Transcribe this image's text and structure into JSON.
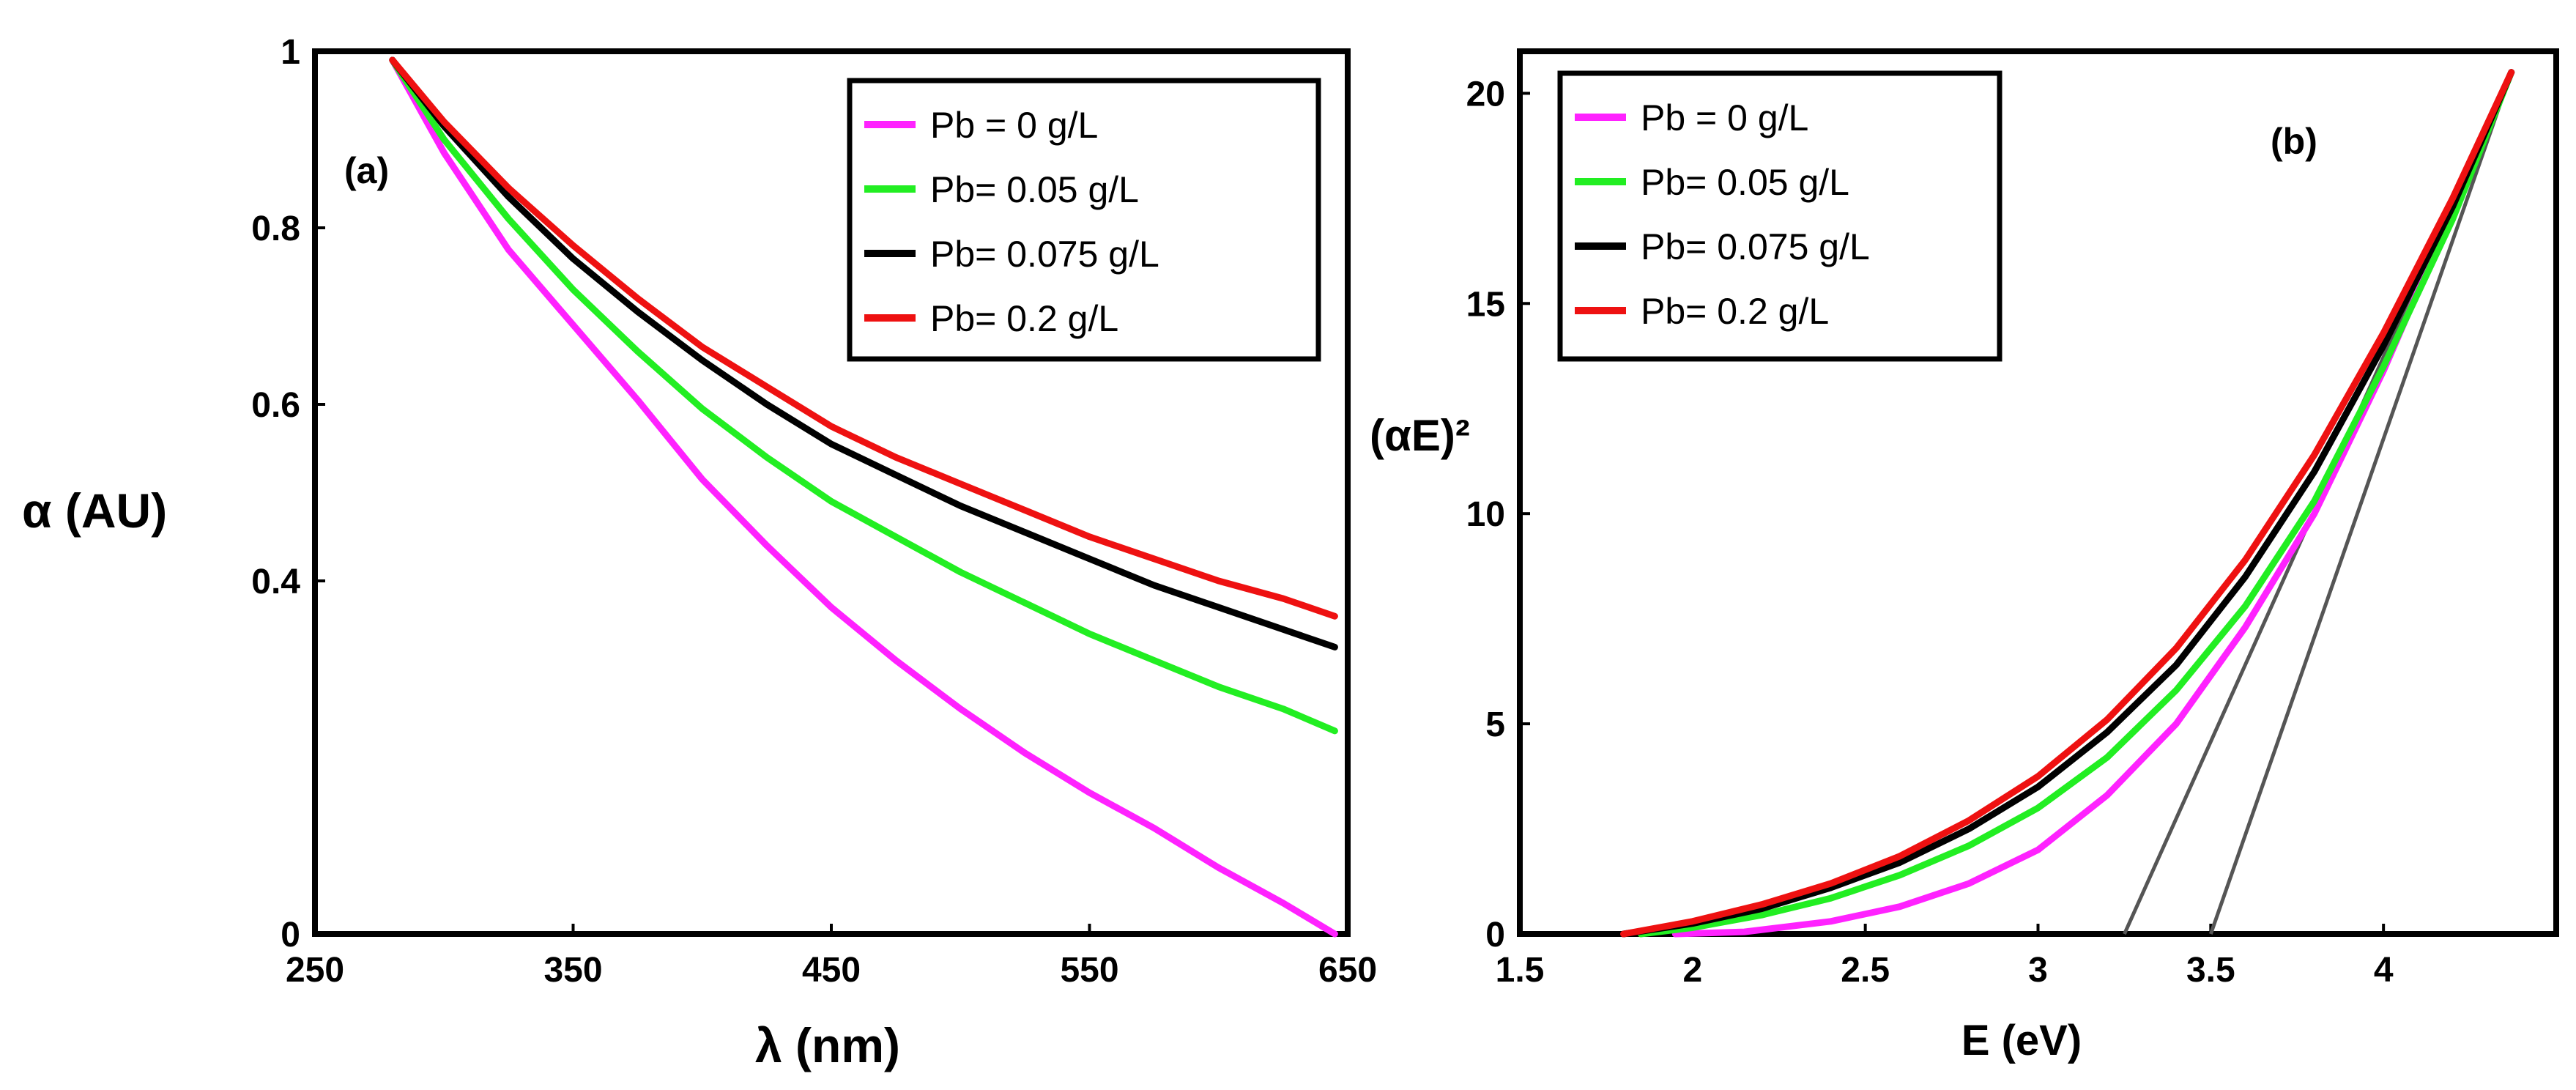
{
  "chart_data": [
    {
      "type": "line",
      "panel_label": "(a)",
      "xlabel": "λ (nm)",
      "ylabel": "α (AU)",
      "xlim": [
        250,
        650
      ],
      "ylim": [
        0,
        1
      ],
      "xticks": [
        250,
        350,
        450,
        550,
        650
      ],
      "yticks": [
        0,
        0.4,
        0.6,
        0.8,
        1
      ],
      "ytick_labels": [
        "0",
        "0.4",
        "0.6",
        "0.8",
        "1"
      ],
      "grid": false,
      "legend_position": "top-right",
      "series": [
        {
          "name": "Pb =  0 g/L",
          "color": "#ff22ff",
          "x": [
            280,
            300,
            325,
            350,
            375,
            400,
            425,
            450,
            475,
            500,
            525,
            550,
            575,
            600,
            625,
            645
          ],
          "y": [
            0.99,
            0.885,
            0.775,
            0.69,
            0.605,
            0.515,
            0.44,
            0.37,
            0.31,
            0.255,
            0.205,
            0.16,
            0.12,
            0.075,
            0.035,
            0.0
          ]
        },
        {
          "name": "Pb= 0.05 g/L",
          "color": "#22ee22",
          "x": [
            280,
            300,
            325,
            350,
            375,
            400,
            425,
            450,
            475,
            500,
            525,
            550,
            575,
            600,
            625,
            645
          ],
          "y": [
            0.99,
            0.9,
            0.81,
            0.73,
            0.66,
            0.595,
            0.54,
            0.49,
            0.45,
            0.41,
            0.375,
            0.34,
            0.31,
            0.28,
            0.255,
            0.23
          ]
        },
        {
          "name": "Pb= 0.075 g/L",
          "color": "#000000",
          "x": [
            280,
            300,
            325,
            350,
            375,
            400,
            425,
            450,
            475,
            500,
            525,
            550,
            575,
            600,
            625,
            645
          ],
          "y": [
            0.99,
            0.915,
            0.835,
            0.765,
            0.705,
            0.65,
            0.6,
            0.555,
            0.52,
            0.485,
            0.455,
            0.425,
            0.395,
            0.37,
            0.345,
            0.325
          ]
        },
        {
          "name": "Pb= 0.2 g/L",
          "color": "#ee1111",
          "x": [
            280,
            300,
            325,
            350,
            375,
            400,
            425,
            450,
            475,
            500,
            525,
            550,
            575,
            600,
            625,
            645
          ],
          "y": [
            0.99,
            0.92,
            0.845,
            0.78,
            0.72,
            0.665,
            0.62,
            0.575,
            0.54,
            0.51,
            0.48,
            0.45,
            0.425,
            0.4,
            0.38,
            0.36
          ]
        }
      ]
    },
    {
      "type": "line",
      "panel_label": "(b)",
      "xlabel": "E (eV)",
      "ylabel": "(αE)²",
      "xlim": [
        1.5,
        4.5
      ],
      "ylim": [
        0,
        21
      ],
      "xticks": [
        1.5,
        2,
        2.5,
        3,
        3.5,
        4
      ],
      "yticks": [
        0,
        5,
        10,
        15,
        20
      ],
      "grid": false,
      "legend_position": "top-left",
      "series": [
        {
          "name": "Pb =  0 g/L",
          "color": "#ff22ff",
          "x": [
            1.95,
            2.15,
            2.4,
            2.6,
            2.8,
            3.0,
            3.2,
            3.4,
            3.6,
            3.8,
            4.0,
            4.2,
            4.37
          ],
          "y": [
            0.0,
            0.05,
            0.3,
            0.65,
            1.2,
            2.0,
            3.3,
            5.0,
            7.3,
            10.0,
            13.4,
            17.2,
            20.5
          ]
        },
        {
          "name": "Pb= 0.05 g/L",
          "color": "#22ee22",
          "x": [
            1.85,
            2.0,
            2.2,
            2.4,
            2.6,
            2.8,
            3.0,
            3.2,
            3.4,
            3.6,
            3.8,
            4.0,
            4.2,
            4.37
          ],
          "y": [
            0.0,
            0.15,
            0.45,
            0.85,
            1.4,
            2.1,
            3.0,
            4.2,
            5.8,
            7.8,
            10.3,
            13.5,
            17.0,
            20.5
          ]
        },
        {
          "name": "Pb= 0.075 g/L",
          "color": "#000000",
          "x": [
            1.8,
            2.0,
            2.2,
            2.4,
            2.6,
            2.8,
            3.0,
            3.2,
            3.4,
            3.6,
            3.8,
            4.0,
            4.2,
            4.37
          ],
          "y": [
            0.0,
            0.25,
            0.6,
            1.1,
            1.7,
            2.5,
            3.5,
            4.8,
            6.4,
            8.5,
            11.0,
            14.0,
            17.3,
            20.5
          ]
        },
        {
          "name": "Pb= 0.2 g/L",
          "color": "#ee1111",
          "x": [
            1.8,
            2.0,
            2.2,
            2.4,
            2.6,
            2.8,
            3.0,
            3.2,
            3.4,
            3.6,
            3.8,
            4.0,
            4.2,
            4.37
          ],
          "y": [
            0.0,
            0.3,
            0.7,
            1.2,
            1.85,
            2.7,
            3.75,
            5.1,
            6.8,
            8.9,
            11.4,
            14.3,
            17.5,
            20.5
          ]
        }
      ],
      "tangent_lines": [
        {
          "x": [
            3.25,
            4.37
          ],
          "y": [
            0,
            20.5
          ],
          "color": "#555555"
        },
        {
          "x": [
            3.5,
            4.37
          ],
          "y": [
            0,
            20.5
          ],
          "color": "#555555"
        }
      ]
    }
  ]
}
